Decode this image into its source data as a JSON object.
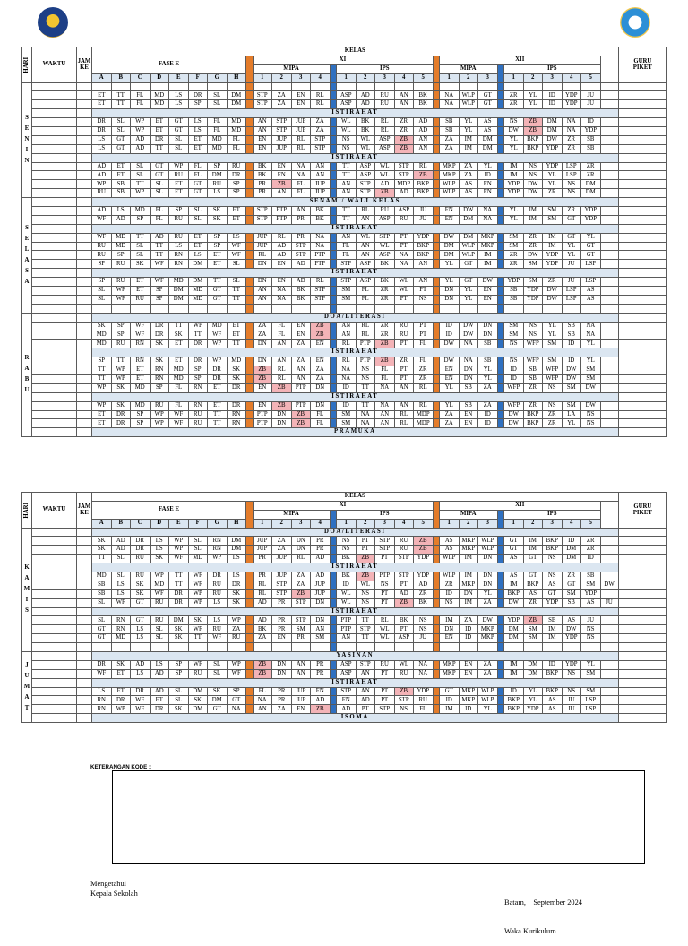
{
  "header": {
    "hari": "HARI",
    "waktu": "WAKTU",
    "jam_ke": "JAM\nKE",
    "kelas": "KELAS",
    "fase": "FASE E",
    "xi": "XI",
    "xii": "XII",
    "mipa": "MIPA",
    "ips": "IPS",
    "guru_piket": "GURU\nPIKET",
    "fase_cols": [
      "A",
      "B",
      "C",
      "D",
      "E",
      "F",
      "G",
      "H"
    ],
    "mipa_nums": [
      "1",
      "2",
      "3",
      "4"
    ],
    "ips_nums": [
      "1",
      "2",
      "3",
      "4",
      "5"
    ],
    "xii_mipa_nums": [
      "1",
      "2",
      "3"
    ],
    "xii_ips_nums": [
      "1",
      "2",
      "3",
      "4",
      "5"
    ]
  },
  "sections": [
    {
      "days": [
        {
          "name": "SENIN",
          "rows": [
            {
              "type": "blank"
            },
            {
              "type": "data",
              "cells": "ET TT FL MD LS DR SL DM STP ZA EN RL ASP AD RU AN BK NA WLP GT ZR YL ID YDP JU"
            },
            {
              "type": "data",
              "cells": "ET TT FL MD LS SP SL DM STP ZA EN RL ASP AD RU AN BK NA WLP GT ZR YL ID YDP JU"
            },
            {
              "type": "break",
              "label": "ISTIRAHAT"
            },
            {
              "type": "data",
              "cells": "DR SL WP ET GT LS FL MD AN STP JUP ZA WL BK RL ZR AD SB YL AS NS ZB* DM NA ID"
            },
            {
              "type": "data",
              "cells": "DR SL WP ET GT LS FL MD AN STP JUP ZA WL BK RL ZR AD SB YL AS DW ZB* DM NA YDP"
            },
            {
              "type": "data",
              "cells": "LS GT AD DR SL ET MD FL EN JUP RL STP NS WL ASP ZB* AN ZA IM DM YL BKP DW ZR SB"
            },
            {
              "type": "data",
              "cells": "LS GT AD TT SL ET MD FL EN JUP RL STP NS WL ASP ZB* AN ZA IM DM YL BKP YDP ZR SB"
            },
            {
              "type": "break",
              "label": "ISTIRAHAT"
            },
            {
              "type": "data",
              "cells": "AD ET SL GT WP FL SP RU BK EN NA AN TT ASP WL STP RL MKP ZA YL IM NS YDP LSP ZR"
            },
            {
              "type": "data",
              "cells": "AD ET SL GT RU FL DM DR BK EN NA AN TT ASP WL STP ZB* MKP ZA ID IM NS YL LSP ZR"
            },
            {
              "type": "data",
              "cells": "WP SB TT SL ET GT RU SP PR ZB* FL JUP AN STP AD MDP BKP WLP AS EN YDP DW YL NS DM"
            },
            {
              "type": "data",
              "cells": "RU SB WP SL ET GT LS SP PR AN FL JUP AN STP ZB* AD BKP WLP AS EN YDP DW ZR NS DM"
            }
          ]
        },
        {
          "name": "SELASA",
          "rows": [
            {
              "type": "break",
              "label": "SENAM / WALI KELAS"
            },
            {
              "type": "data",
              "cells": "AD LS MD FL SP SL SK ET STP PTP AN BK TT RL RU ASP JU EN DW NA YL IM SM ZR YDP"
            },
            {
              "type": "data",
              "cells": "WF AD SP FL RU SL SK ET STP PTP PR BK TT AN ASP RU JU EN DM NA YL IM SM GT YDP"
            },
            {
              "type": "break",
              "label": "ISTIRAHAT"
            },
            {
              "type": "data",
              "cells": "WF MD TT AD RU ET SP LS JUP RL PR NA AN WL STP PT YDP DW DM MKP SM ZR IM GT YL"
            },
            {
              "type": "data",
              "cells": "RU MD SL TT LS ET SP WF JUP AD STP NA FL AN WL PT BKP DM WLP MKP SM ZR IM YL GT"
            },
            {
              "type": "data",
              "cells": "RU SP SL TT RN LS ET WF RL AD STP PTP FL AN ASP NA BKP DM WLP IM ZR DW YDP YL GT"
            },
            {
              "type": "data",
              "cells": "SP RU SK WF RN DM ET SL DN EN AD PTP STP ASP BK NA AN YL GT IM ZR SM YDP JU LSP"
            },
            {
              "type": "break",
              "label": "ISTIRAHAT"
            },
            {
              "type": "data",
              "cells": "SP RU ET WF MD DM TT SL DN EN AD RL STP ASP BK WL AN YL GT DW YDP SM ZR JU LSP"
            },
            {
              "type": "data",
              "cells": "SL WF ET SP DM MD GT TT AN NA BK STP SM FL ZR WL PT DN YL EN SB YDP DW LSP AS"
            },
            {
              "type": "data",
              "cells": "SL WF RU SP DM MD GT TT AN NA BK STP SM FL ZR PT NS DN YL EN SB YDP DW LSP AS"
            },
            {
              "type": "blank"
            }
          ]
        },
        {
          "name": "RABU",
          "rows": [
            {
              "type": "break",
              "label": "DOA/LITERASI"
            },
            {
              "type": "data",
              "cells": "SK SP WF DR TT WP MD ET ZA FL EN ZB* AN RL ZR RU PT ID DW DN SM NS YL SB NA"
            },
            {
              "type": "data",
              "cells": "MD SP WF DR SK TT WF ET ZA FL EN ZB* AN RL ZR RU PT ID DW DN SM NS YL SB NA"
            },
            {
              "type": "data",
              "cells": "MD RU RN SK ET DR WP TT DN AN ZA EN RL PTP ZB* PT FL DW NA SB NS WFP SM ID YL"
            },
            {
              "type": "break",
              "label": "ISTIRAHAT"
            },
            {
              "type": "data",
              "cells": "SP TT RN SK ET DR WP MD DN AN ZA EN RL PTP ZB* ZR FL DW NA SB NS WFP SM ID YL"
            },
            {
              "type": "data",
              "cells": "TT WP ET RN MD SP DR SK ZB* RL AN ZA NA NS FL PT ZR EN DN YL ID SB WFP DW SM"
            },
            {
              "type": "data",
              "cells": "TT WP ET RN MD SP DR SK ZB* RL AN ZA NA NS FL PT ZR EN DN YL ID SB WFP DW SM"
            },
            {
              "type": "data",
              "cells": "WP SK MD SP FL RN ET DR EN ZB* PTP DN ID TT NA AN RL YL SB ZA WFP ZR NS SM DW"
            },
            {
              "type": "break",
              "label": "ISTIRAHAT"
            },
            {
              "type": "data",
              "cells": "WP SK MD RU FL RN ET DR EN ZB* PTP DN ID TT NA AN RL YL SB ZA WFP ZR NS SM DW"
            },
            {
              "type": "data",
              "cells": "ET DR SP WP WF RU TT RN PTP DN ZB* FL SM NA AN RL MDP ZA EN ID DW BKP ZR LA NS"
            },
            {
              "type": "data",
              "cells": "ET DR SP WP WF RU TT RN PTP DN ZB* FL SM NA AN RL MDP ZA EN ID DW BKP ZR YL NS"
            },
            {
              "type": "break",
              "label": "PRAMUKA"
            }
          ]
        }
      ]
    },
    {
      "days": [
        {
          "name": "KAMIS",
          "rows": [
            {
              "type": "break",
              "label": "DOA/LITERASI"
            },
            {
              "type": "data",
              "cells": "SK AD DR LS WP SL RN DM JUP ZA DN PR NS PT STP RU ZB* AS MKP WLP GT IM BKP ID ZR"
            },
            {
              "type": "data",
              "cells": "SK AD DR LS WP SL RN DM JUP ZA DN PR NS PT STP RU ZB* AS MKP WLP GT IM BKP DM ZR"
            },
            {
              "type": "data",
              "cells": "TT SL RU SK WF MD WP LS PR JUP RL AD BK ZB* PT STP YDP WLP IM DN AS GT NS DM ID"
            },
            {
              "type": "break",
              "label": "ISTIRAHAT"
            },
            {
              "type": "data",
              "cells": "MD SL RU WP TT WF DR LS PR JUP ZA AD BK ZB* PTP STP YDP WLP IM DN AS GT NS ZR SB"
            },
            {
              "type": "data",
              "cells": "SB LS SK MD TT WF RU DR RL STP ZA JUP ID WL NS PT AD ZR MKP DN IM BKP AS GT SM DW"
            },
            {
              "type": "data",
              "cells": "SB LS SK WF DR WP RU SK RL STP ZB* JUP WL NS PT AD ZR ID DN YL BKP AS GT SM YDP"
            },
            {
              "type": "data",
              "cells": "SL WF GT RU DR WP LS SK AD PR STP DN WL NS PT ZB* BK NS IM ZA DW ZR YDP SB AS JU"
            },
            {
              "type": "break",
              "label": "ISTIRAHAT"
            },
            {
              "type": "data",
              "cells": "SL RN GT RU DM SK LS WP AD PR STP DN PTP TT RL BK NS IM ZA DW YDP ZB* SB AS JU"
            },
            {
              "type": "data",
              "cells": "GT RN LS SL SK WF RU ZA BK PR SM AN PTP STP WL PT NS DN ID MKP DM SM IM DW NS"
            },
            {
              "type": "data",
              "cells": "GT MD LS SL SK TT WF RU ZA EN PR SM AN TT WL ASP JU EN ID MKP DM SM IM YDP NS"
            },
            {
              "type": "blank"
            }
          ]
        },
        {
          "name": "JUMAT",
          "rows": [
            {
              "type": "break",
              "label": "YASINAN"
            },
            {
              "type": "data",
              "cells": "DR SK AD LS SP WF SL WP ZB* DN AN PR ASP STP RU WL NA MKP EN ZA IM DM ID YDP YL"
            },
            {
              "type": "data",
              "cells": "WF ET LS AD SP RU SL WF ZB* DN AN PR ASP AN PT RU NA MKP EN ZA IM DM BKP NS SM"
            },
            {
              "type": "break",
              "label": "ISTIRAHAT"
            },
            {
              "type": "data",
              "cells": "LS ET DR AD SL DM SK SP FL PR JUP EN STP AN PT ZB* YDP GT MKP WLP ID YL BKP NS SM"
            },
            {
              "type": "data",
              "cells": "RN DR WF ET SL SK DM GT NA PR JUP AD EN AD PT STP RU ID MKP WLP BKP YL AS JU LSP"
            },
            {
              "type": "data",
              "cells": "RN WP WF DR SK DM GT NA AN ZA EN ZB* AD PT STP NS FL IM ID YL BKP YDP AS JU LSP"
            },
            {
              "type": "break",
              "label": "ISOMA"
            }
          ]
        }
      ]
    }
  ],
  "keterangan_label": "KETERANGAN KODE :",
  "signatures": {
    "left": [
      "Mengetahui",
      "Kepala Sekolah"
    ],
    "right": [
      "Batam,    September 2024",
      "Waka Kurikulum"
    ]
  }
}
